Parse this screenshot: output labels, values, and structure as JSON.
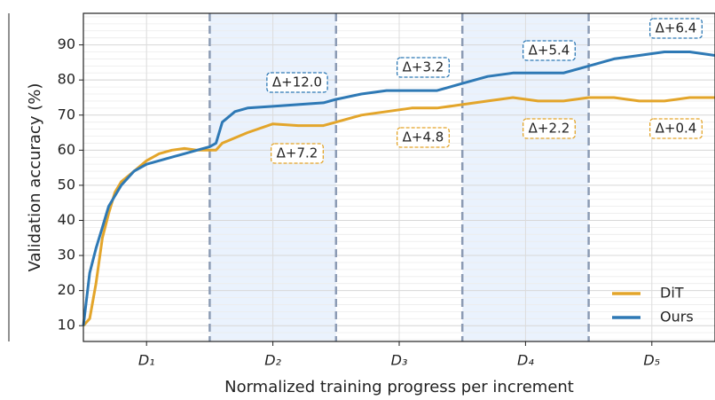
{
  "chart_data": {
    "type": "line",
    "xlabel": "Normalized training progress per increment",
    "ylabel": "Validation accuracy (%)",
    "xlim": [
      0,
      5
    ],
    "ylim": [
      5.5,
      99
    ],
    "xticks": [
      {
        "value": 0.5,
        "label": "D₁"
      },
      {
        "value": 1.5,
        "label": "D₂"
      },
      {
        "value": 2.5,
        "label": "D₃"
      },
      {
        "value": 3.5,
        "label": "D₄"
      },
      {
        "value": 4.5,
        "label": "D₅"
      }
    ],
    "yticks": [
      10,
      20,
      30,
      40,
      50,
      60,
      70,
      80,
      90
    ],
    "boundaries": [
      1,
      2,
      3,
      4
    ],
    "grid": true,
    "legend": "lower right",
    "series": [
      {
        "name": "DiT",
        "color": "#e3a52a",
        "x": [
          0,
          0.05,
          0.1,
          0.15,
          0.2,
          0.25,
          0.3,
          0.4,
          0.5,
          0.6,
          0.7,
          0.8,
          0.9,
          1.0,
          1.05,
          1.1,
          1.3,
          1.5,
          1.7,
          1.9,
          2.0,
          2.2,
          2.4,
          2.6,
          2.8,
          3.0,
          3.2,
          3.4,
          3.6,
          3.8,
          4.0,
          4.2,
          4.4,
          4.6,
          4.8,
          5.0
        ],
        "values": [
          10,
          12,
          22,
          35,
          42,
          48,
          51,
          54,
          57,
          59,
          60,
          60.5,
          60,
          60,
          60,
          62,
          65,
          67.5,
          67,
          67,
          68,
          70,
          71,
          72,
          72,
          73,
          74,
          75,
          74,
          74,
          75,
          75,
          74,
          74,
          75,
          75
        ]
      },
      {
        "name": "Ours",
        "color": "#2e79b5",
        "x": [
          0,
          0.05,
          0.1,
          0.15,
          0.2,
          0.3,
          0.4,
          0.5,
          0.6,
          0.7,
          0.8,
          0.9,
          1.0,
          1.05,
          1.1,
          1.2,
          1.3,
          1.5,
          1.7,
          1.9,
          2.0,
          2.2,
          2.4,
          2.6,
          2.8,
          3.0,
          3.2,
          3.4,
          3.6,
          3.8,
          4.0,
          4.2,
          4.4,
          4.6,
          4.8,
          5.0
        ],
        "values": [
          10,
          25,
          32,
          38,
          44,
          50,
          54,
          56,
          57,
          58,
          59,
          60,
          61,
          62,
          68,
          71,
          72,
          72.5,
          73,
          73.5,
          74.5,
          76,
          77,
          77,
          77,
          79,
          81,
          82,
          82,
          82,
          84,
          86,
          87,
          88,
          88,
          87
        ]
      }
    ],
    "annotations": [
      {
        "text": "Δ+12.0",
        "series": "Ours"
      },
      {
        "text": "Δ+3.2",
        "series": "Ours"
      },
      {
        "text": "Δ+5.4",
        "series": "Ours"
      },
      {
        "text": "Δ+6.4",
        "series": "Ours"
      },
      {
        "text": "Δ+7.2",
        "series": "DiT"
      },
      {
        "text": "Δ+4.8",
        "series": "DiT"
      },
      {
        "text": "Δ+2.2",
        "series": "DiT"
      },
      {
        "text": "Δ+0.4",
        "series": "DiT"
      }
    ]
  }
}
